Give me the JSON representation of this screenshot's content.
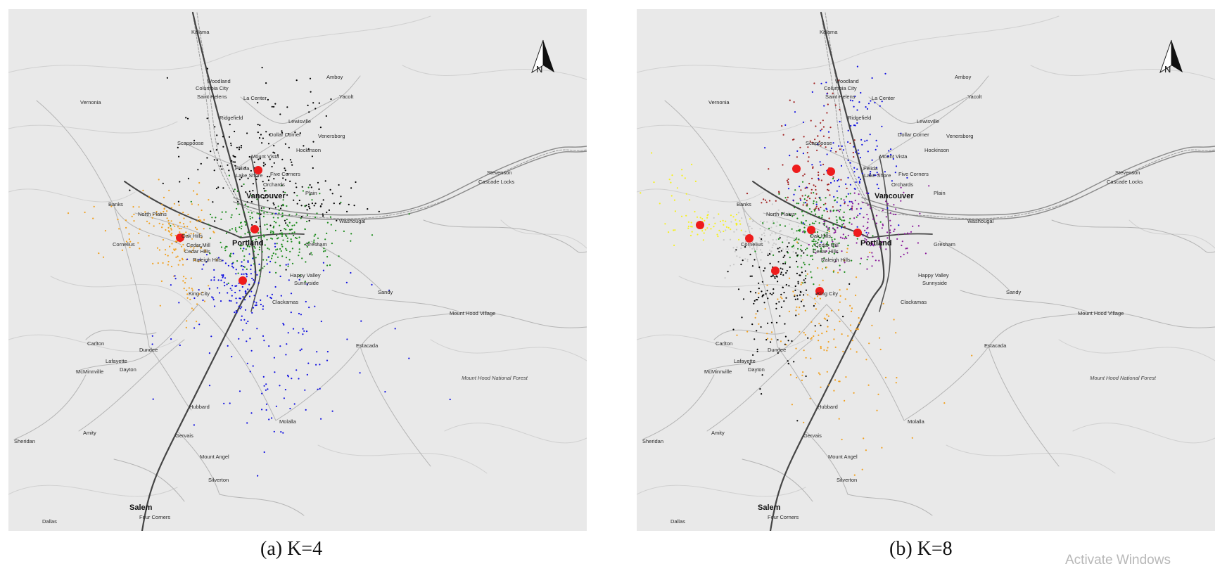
{
  "panels": [
    {
      "id": "a",
      "caption": "(a) K=4",
      "north_label": "N",
      "cluster_colors": [
        "#000000",
        "#f0a020",
        "#1a8a1a",
        "#1010e0"
      ],
      "centroid_color": "#ee1c1c"
    },
    {
      "id": "b",
      "caption": "(b) K=8",
      "north_label": "N",
      "cluster_colors": [
        "#a02020",
        "#1010e0",
        "#f5f020",
        "#c8c8c8",
        "#1a8a1a",
        "#8a1a9a",
        "#000000",
        "#f0a020"
      ],
      "centroid_color": "#ee1c1c"
    }
  ],
  "places": {
    "kalama": "Kalama",
    "woodland": "Woodland",
    "amboy": "Amboy",
    "columbia_city": "Columbia City",
    "saint_helens": "Saint Helens",
    "la_center": "La Center",
    "yacolt": "Yacolt",
    "vernonia": "Vernonia",
    "ridgefield": "Ridgefield",
    "lewisville": "Lewisville",
    "dollar_corner": "Dollar Corner",
    "venersborg": "Venersborg",
    "scappoose": "Scappoose",
    "hockinson": "Hockinson",
    "mount_vista": "Mount Vista",
    "felida": "Felida",
    "lake_shore": "Lake Shore",
    "five_corners": "Five Corners",
    "orchards": "Orchards",
    "plain": "Plain",
    "vancouver": "Vancouver",
    "stevenson": "Stevenson",
    "cascade_locks": "Cascade Locks",
    "banks": "Banks",
    "north_plains": "North Plains",
    "washougal": "Washougal",
    "cornelius": "Cornelius",
    "oak_hills": "Oak Hills",
    "cedar_mill": "Cedar Mill",
    "cedar_hills": "Cedar Hills",
    "portland": "Portland",
    "raleigh_hills": "Raleigh Hills",
    "gresham": "Gresham",
    "king_city": "King City",
    "happy_valley": "Happy Valley",
    "sunnyside": "Sunnyside",
    "clackamas": "Clackamas",
    "sandy": "Sandy",
    "mount_hood_village": "Mount Hood Village",
    "carlton": "Carlton",
    "dundee": "Dundee",
    "estacada": "Estacada",
    "lafayette": "Lafayette",
    "mcminnville": "McMinnville",
    "dayton": "Dayton",
    "mount_hood_forest": "Mount Hood National Forest",
    "hubbard": "Hubbard",
    "molalla": "Molalla",
    "amity": "Amity",
    "gervais": "Gervais",
    "sheridan": "Sheridan",
    "mount_angel": "Mount Angel",
    "silverton": "Silverton",
    "salem": "Salem",
    "four_corners": "Four Corners",
    "dallas": "Dallas"
  },
  "watermark": "Activate Windows"
}
